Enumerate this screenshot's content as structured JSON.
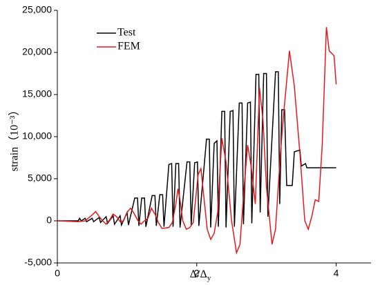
{
  "chart_data": {
    "type": "line",
    "x_label": "Δ/Δ",
    "x_label_sub": "y",
    "y_label": "strain（10⁻³）",
    "xlim": [
      0,
      4.5
    ],
    "xticks": [
      0,
      2,
      4
    ],
    "ylim": [
      -5000,
      25000
    ],
    "yticks": [
      {
        "value": -5000,
        "label": "-5,000"
      },
      0,
      {
        "value": 5000,
        "label": "5,000"
      },
      {
        "value": 10000,
        "label": "10,000"
      },
      {
        "value": 15000,
        "label": "15,000"
      },
      {
        "value": 20000,
        "label": "20,000"
      },
      {
        "value": 25000,
        "label": "25,000"
      }
    ],
    "legend": "upper left",
    "series": [
      {
        "name": "Test",
        "color": "#000000",
        "x": [
          0,
          0.3,
          0.32,
          0.34,
          0.4,
          0.42,
          0.5,
          0.52,
          0.6,
          0.62,
          0.7,
          0.72,
          0.8,
          0.82,
          0.9,
          0.92,
          1.0,
          1.02,
          1.11,
          1.15,
          1.17,
          1.21,
          1.25,
          1.27,
          1.36,
          1.4,
          1.42,
          1.47,
          1.51,
          1.53,
          1.6,
          1.64,
          1.66,
          1.7,
          1.74,
          1.76,
          1.86,
          1.9,
          1.92,
          1.97,
          2.01,
          2.03,
          2.14,
          2.18,
          2.2,
          2.25,
          2.29,
          2.31,
          2.36,
          2.4,
          2.42,
          2.48,
          2.52,
          2.54,
          2.61,
          2.65,
          2.67,
          2.73,
          2.77,
          2.79,
          2.85,
          2.89,
          2.91,
          2.96,
          3.0,
          3.02,
          3.13,
          3.17,
          3.19,
          3.22,
          3.26,
          3.29,
          3.37,
          3.4,
          3.48,
          3.5,
          3.56,
          3.58,
          4.0
        ],
        "values": [
          0,
          0,
          300,
          0,
          300,
          -100,
          300,
          -100,
          400,
          -200,
          500,
          -300,
          600,
          -400,
          600,
          -500,
          1000,
          -500,
          2700,
          2700,
          -600,
          2700,
          2700,
          -700,
          3000,
          3000,
          -600,
          3100,
          3100,
          -700,
          6700,
          6800,
          -700,
          6800,
          6800,
          -800,
          7000,
          7000,
          -500,
          6900,
          7000,
          -600,
          9700,
          9700,
          -800,
          9200,
          9500,
          -700,
          13000,
          13000,
          -800,
          13000,
          13100,
          -700,
          14000,
          14000,
          -400,
          14000,
          14100,
          -300,
          17400,
          17400,
          1000,
          17500,
          17500,
          500,
          17700,
          17700,
          2000,
          13200,
          13200,
          4200,
          4200,
          8200,
          8400,
          6500,
          6800,
          6300,
          6300
        ]
      },
      {
        "name": "FEM",
        "color": "#e8161b",
        "x": [
          0,
          0.3,
          0.4,
          0.5,
          0.55,
          0.6,
          0.65,
          0.7,
          0.75,
          0.8,
          0.85,
          0.9,
          0.95,
          1.0,
          1.05,
          1.1,
          1.15,
          1.2,
          1.25,
          1.3,
          1.35,
          1.4,
          1.45,
          1.5,
          1.6,
          1.65,
          1.7,
          1.73,
          1.76,
          1.8,
          1.85,
          1.9,
          1.95,
          2.02,
          2.06,
          2.1,
          2.15,
          2.2,
          2.25,
          2.3,
          2.36,
          2.42,
          2.5,
          2.57,
          2.62,
          2.68,
          2.73,
          2.78,
          2.84,
          2.9,
          2.95,
          3.0,
          3.08,
          3.13,
          3.2,
          3.25,
          3.33,
          3.4,
          3.48,
          3.55,
          3.6,
          3.65,
          3.7,
          3.75,
          3.8,
          3.86,
          3.9,
          3.97,
          4.0
        ],
        "values": [
          0,
          -100,
          0,
          700,
          1100,
          500,
          0,
          -400,
          100,
          800,
          500,
          -100,
          0,
          1000,
          1500,
          900,
          100,
          -400,
          0,
          300,
          1500,
          800,
          -200,
          -900,
          -800,
          -200,
          2000,
          3800,
          2500,
          0,
          -1000,
          -800,
          -200,
          5500,
          6200,
          3000,
          -1000,
          -2200,
          -1500,
          1000,
          9800,
          7000,
          0,
          -3800,
          -2800,
          4000,
          9000,
          6500,
          2000,
          15800,
          12000,
          4000,
          -2800,
          -1000,
          8000,
          13000,
          20200,
          16000,
          8000,
          0,
          -1000,
          500,
          2500,
          2300,
          9000,
          23000,
          20200,
          19600,
          16200
        ]
      }
    ]
  }
}
